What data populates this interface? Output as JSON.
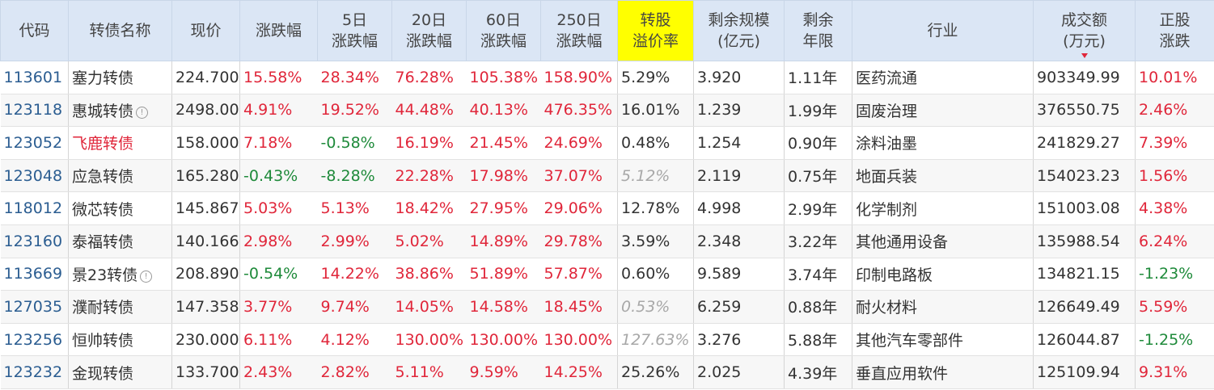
{
  "headers": {
    "code": "代码",
    "name": "转债名称",
    "price": "现价",
    "change": "涨跌幅",
    "change5": [
      "5日",
      "涨跌幅"
    ],
    "change20": [
      "20日",
      "涨跌幅"
    ],
    "change60": [
      "60日",
      "涨跌幅"
    ],
    "change250": [
      "250日",
      "涨跌幅"
    ],
    "premium": [
      "转股",
      "溢价率"
    ],
    "remaining_scale": [
      "剩余规模",
      "(亿元)"
    ],
    "remaining_years": [
      "剩余",
      "年限"
    ],
    "industry": "行业",
    "turnover": [
      "成交额",
      "(万元)"
    ],
    "stock_change": [
      "正股",
      "涨跌"
    ]
  },
  "colors": {
    "header_bg": "#dbe6f5",
    "highlight_header": "#ffff00",
    "up": "#e0263a",
    "down": "#1e8a3a",
    "code": "#2b5d91",
    "muted": "#a8a8a8"
  },
  "sort": {
    "column": "turnover",
    "direction": "desc"
  },
  "rows": [
    {
      "code": "113601",
      "name": "塞力转债",
      "info": false,
      "name_red": false,
      "price": "224.700",
      "change": {
        "v": "15.58%",
        "d": "up"
      },
      "c5": {
        "v": "28.34%",
        "d": "up"
      },
      "c20": {
        "v": "76.28%",
        "d": "up"
      },
      "c60": {
        "v": "105.38%",
        "d": "up"
      },
      "c250": {
        "v": "158.90%",
        "d": "up"
      },
      "premium": {
        "v": "5.29%",
        "muted": false
      },
      "scale": "3.920",
      "years": "1.11年",
      "industry": "医药流通",
      "turnover": "903349.99",
      "stock": {
        "v": "10.01%",
        "d": "up"
      }
    },
    {
      "code": "123118",
      "name": "惠城转债",
      "info": true,
      "name_red": false,
      "price": "2498.00",
      "change": {
        "v": "4.91%",
        "d": "up"
      },
      "c5": {
        "v": "19.52%",
        "d": "up"
      },
      "c20": {
        "v": "44.48%",
        "d": "up"
      },
      "c60": {
        "v": "40.13%",
        "d": "up"
      },
      "c250": {
        "v": "476.35%",
        "d": "up"
      },
      "premium": {
        "v": "16.01%",
        "muted": false
      },
      "scale": "1.239",
      "years": "1.99年",
      "industry": "固废治理",
      "turnover": "376550.75",
      "stock": {
        "v": "2.46%",
        "d": "up"
      }
    },
    {
      "code": "123052",
      "name": "飞鹿转债",
      "info": false,
      "name_red": true,
      "price": "158.000",
      "change": {
        "v": "7.18%",
        "d": "up"
      },
      "c5": {
        "v": "-0.58%",
        "d": "down"
      },
      "c20": {
        "v": "16.19%",
        "d": "up"
      },
      "c60": {
        "v": "21.45%",
        "d": "up"
      },
      "c250": {
        "v": "24.69%",
        "d": "up"
      },
      "premium": {
        "v": "0.48%",
        "muted": false
      },
      "scale": "1.254",
      "years": "0.90年",
      "industry": "涂料油墨",
      "turnover": "241829.27",
      "stock": {
        "v": "7.39%",
        "d": "up"
      }
    },
    {
      "code": "123048",
      "name": "应急转债",
      "info": false,
      "name_red": false,
      "price": "165.280",
      "change": {
        "v": "-0.43%",
        "d": "down"
      },
      "c5": {
        "v": "-8.28%",
        "d": "down"
      },
      "c20": {
        "v": "22.28%",
        "d": "up"
      },
      "c60": {
        "v": "17.98%",
        "d": "up"
      },
      "c250": {
        "v": "37.07%",
        "d": "up"
      },
      "premium": {
        "v": "5.12%",
        "muted": true
      },
      "scale": "2.119",
      "years": "0.75年",
      "industry": "地面兵装",
      "turnover": "154023.23",
      "stock": {
        "v": "1.56%",
        "d": "up"
      }
    },
    {
      "code": "118012",
      "name": "微芯转债",
      "info": false,
      "name_red": false,
      "price": "145.867",
      "change": {
        "v": "5.03%",
        "d": "up"
      },
      "c5": {
        "v": "5.13%",
        "d": "up"
      },
      "c20": {
        "v": "18.42%",
        "d": "up"
      },
      "c60": {
        "v": "27.95%",
        "d": "up"
      },
      "c250": {
        "v": "29.06%",
        "d": "up"
      },
      "premium": {
        "v": "12.78%",
        "muted": false
      },
      "scale": "4.998",
      "years": "2.99年",
      "industry": "化学制剂",
      "turnover": "151003.08",
      "stock": {
        "v": "4.38%",
        "d": "up"
      }
    },
    {
      "code": "123160",
      "name": "泰福转债",
      "info": false,
      "name_red": false,
      "price": "140.166",
      "change": {
        "v": "2.98%",
        "d": "up"
      },
      "c5": {
        "v": "2.99%",
        "d": "up"
      },
      "c20": {
        "v": "5.02%",
        "d": "up"
      },
      "c60": {
        "v": "14.89%",
        "d": "up"
      },
      "c250": {
        "v": "29.78%",
        "d": "up"
      },
      "premium": {
        "v": "3.59%",
        "muted": false
      },
      "scale": "2.348",
      "years": "3.22年",
      "industry": "其他通用设备",
      "turnover": "135988.54",
      "stock": {
        "v": "6.24%",
        "d": "up"
      }
    },
    {
      "code": "113669",
      "name": "景23转债",
      "info": true,
      "name_red": false,
      "price": "208.890",
      "change": {
        "v": "-0.54%",
        "d": "down"
      },
      "c5": {
        "v": "14.22%",
        "d": "up"
      },
      "c20": {
        "v": "38.86%",
        "d": "up"
      },
      "c60": {
        "v": "51.89%",
        "d": "up"
      },
      "c250": {
        "v": "57.87%",
        "d": "up"
      },
      "premium": {
        "v": "0.60%",
        "muted": false
      },
      "scale": "9.589",
      "years": "3.74年",
      "industry": "印制电路板",
      "turnover": "134821.15",
      "stock": {
        "v": "-1.23%",
        "d": "down"
      }
    },
    {
      "code": "127035",
      "name": "濮耐转债",
      "info": false,
      "name_red": false,
      "price": "147.358",
      "change": {
        "v": "3.77%",
        "d": "up"
      },
      "c5": {
        "v": "9.74%",
        "d": "up"
      },
      "c20": {
        "v": "14.05%",
        "d": "up"
      },
      "c60": {
        "v": "14.58%",
        "d": "up"
      },
      "c250": {
        "v": "18.45%",
        "d": "up"
      },
      "premium": {
        "v": "0.53%",
        "muted": true
      },
      "scale": "6.259",
      "years": "0.88年",
      "industry": "耐火材料",
      "turnover": "126649.49",
      "stock": {
        "v": "5.59%",
        "d": "up"
      }
    },
    {
      "code": "123256",
      "name": "恒帅转债",
      "info": false,
      "name_red": false,
      "price": "230.000",
      "change": {
        "v": "6.11%",
        "d": "up"
      },
      "c5": {
        "v": "4.12%",
        "d": "up"
      },
      "c20": {
        "v": "130.00%",
        "d": "up"
      },
      "c60": {
        "v": "130.00%",
        "d": "up"
      },
      "c250": {
        "v": "130.00%",
        "d": "up"
      },
      "premium": {
        "v": "127.63%",
        "muted": true
      },
      "scale": "3.276",
      "years": "5.88年",
      "industry": "其他汽车零部件",
      "turnover": "126044.87",
      "stock": {
        "v": "-1.25%",
        "d": "down"
      }
    },
    {
      "code": "123232",
      "name": "金现转债",
      "info": false,
      "name_red": false,
      "price": "133.700",
      "change": {
        "v": "2.43%",
        "d": "up"
      },
      "c5": {
        "v": "2.82%",
        "d": "up"
      },
      "c20": {
        "v": "5.11%",
        "d": "up"
      },
      "c60": {
        "v": "9.59%",
        "d": "up"
      },
      "c250": {
        "v": "14.25%",
        "d": "up"
      },
      "premium": {
        "v": "25.26%",
        "muted": false
      },
      "scale": "2.025",
      "years": "4.39年",
      "industry": "垂直应用软件",
      "turnover": "125109.94",
      "stock": {
        "v": "9.31%",
        "d": "up"
      }
    }
  ]
}
